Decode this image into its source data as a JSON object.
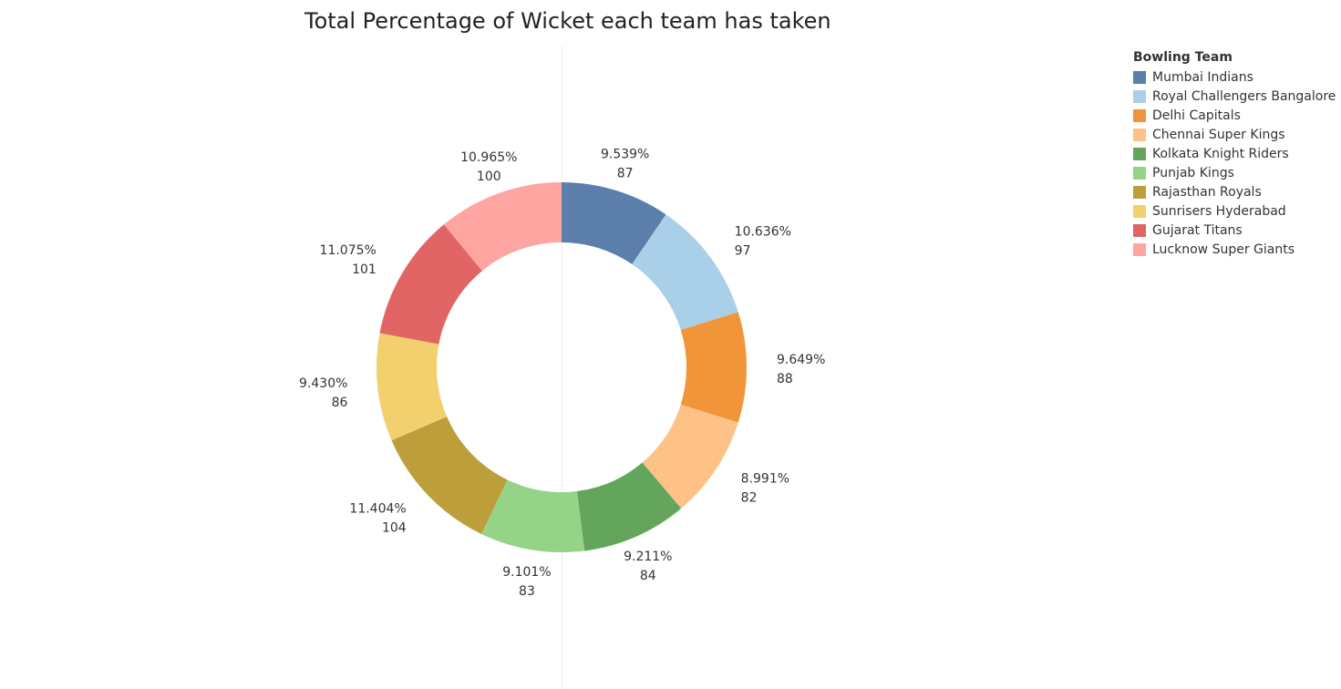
{
  "chart_data": {
    "type": "pie",
    "title": "Total Percentage of Wicket each team has taken",
    "legend": {
      "title": "Bowling Team",
      "placement": "top-right"
    },
    "slices": [
      {
        "name": "Mumbai Indians",
        "value": 87,
        "percent_label": "9.539%",
        "color": "#5b7faa"
      },
      {
        "name": "Royal Challengers Bangalore",
        "value": 97,
        "percent_label": "10.636%",
        "color": "#a9cfe9"
      },
      {
        "name": "Delhi Capitals",
        "value": 88,
        "percent_label": "9.649%",
        "color": "#f1953a"
      },
      {
        "name": "Chennai Super Kings",
        "value": 82,
        "percent_label": "8.991%",
        "color": "#fec287"
      },
      {
        "name": "Kolkata Knight Riders",
        "value": 84,
        "percent_label": "9.211%",
        "color": "#63a65b"
      },
      {
        "name": "Punjab Kings",
        "value": 83,
        "percent_label": "9.101%",
        "color": "#95d486"
      },
      {
        "name": "Rajasthan Royals",
        "value": 104,
        "percent_label": "11.404%",
        "color": "#bc9f3b"
      },
      {
        "name": "Sunrisers Hyderabad",
        "value": 86,
        "percent_label": "9.430%",
        "color": "#f2d06e"
      },
      {
        "name": "Gujarat Titans",
        "value": 101,
        "percent_label": "11.075%",
        "color": "#e26565"
      },
      {
        "name": "Lucknow Super Giants",
        "value": 100,
        "percent_label": "10.965%",
        "color": "#fea5a2"
      }
    ]
  }
}
